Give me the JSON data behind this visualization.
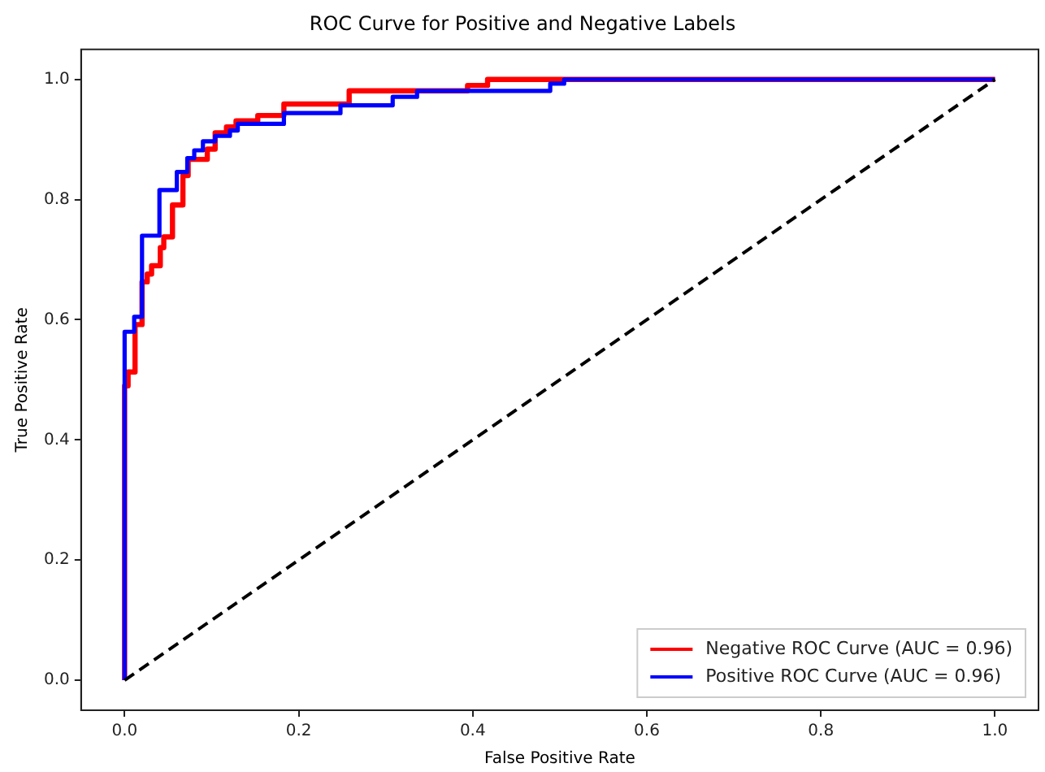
{
  "chart_data": {
    "type": "line",
    "title": "ROC Curve for Positive and Negative Labels",
    "xlabel": "False Positive Rate",
    "ylabel": "True Positive Rate",
    "xlim": [
      -0.05,
      1.05
    ],
    "ylim": [
      -0.05,
      1.05
    ],
    "xticks": [
      {
        "value": 0,
        "label": "0.0"
      },
      0.2,
      0.4,
      0.6,
      0.8,
      {
        "value": 1,
        "label": "1.0"
      }
    ],
    "yticks": [
      {
        "value": 0,
        "label": "0.0"
      },
      0.2,
      0.4,
      0.6,
      0.8,
      {
        "value": 1,
        "label": "1.0"
      }
    ],
    "grid": false,
    "legend": "bottom right",
    "marker": "none",
    "series": [
      {
        "name": "Negative ROC Curve (AUC = 0.96)",
        "color": "#ff0000",
        "line_style": "solid",
        "x": [
          0,
          0,
          0.004,
          0.004,
          0.012,
          0.012,
          0.02,
          0.02,
          0.026,
          0.026,
          0.031,
          0.031,
          0.041,
          0.041,
          0.045,
          0.045,
          0.055,
          0.055,
          0.067,
          0.067,
          0.073,
          0.073,
          0.095,
          0.095,
          0.104,
          0.104,
          0.117,
          0.117,
          0.128,
          0.128,
          0.153,
          0.153,
          0.183,
          0.183,
          0.258,
          0.258,
          0.394,
          0.394,
          0.417,
          0.417,
          1
        ],
        "values": [
          0,
          0.49,
          0.49,
          0.513,
          0.513,
          0.592,
          0.592,
          0.663,
          0.663,
          0.676,
          0.676,
          0.69,
          0.69,
          0.72,
          0.72,
          0.738,
          0.738,
          0.791,
          0.791,
          0.84,
          0.84,
          0.867,
          0.867,
          0.884,
          0.884,
          0.911,
          0.911,
          0.921,
          0.921,
          0.931,
          0.931,
          0.94,
          0.94,
          0.959,
          0.959,
          0.981,
          0.981,
          0.99,
          0.99,
          1,
          1
        ]
      },
      {
        "name": "Positive ROC Curve (AUC = 0.96)",
        "color": "#0000ff",
        "line_style": "solid",
        "x": [
          0,
          0,
          0.011,
          0.011,
          0.02,
          0.02,
          0.04,
          0.04,
          0.06,
          0.06,
          0.072,
          0.072,
          0.08,
          0.08,
          0.09,
          0.09,
          0.104,
          0.104,
          0.121,
          0.121,
          0.13,
          0.13,
          0.183,
          0.183,
          0.248,
          0.248,
          0.308,
          0.308,
          0.336,
          0.336,
          0.489,
          0.489,
          0.505,
          0.505,
          1
        ],
        "values": [
          0,
          0.58,
          0.58,
          0.605,
          0.605,
          0.74,
          0.74,
          0.816,
          0.816,
          0.846,
          0.846,
          0.869,
          0.869,
          0.882,
          0.882,
          0.897,
          0.897,
          0.906,
          0.906,
          0.915,
          0.915,
          0.926,
          0.926,
          0.944,
          0.944,
          0.957,
          0.957,
          0.971,
          0.971,
          0.981,
          0.981,
          0.993,
          0.993,
          1,
          1
        ]
      },
      {
        "color": "#000000",
        "line_style": "dashed",
        "x": [
          0,
          1
        ],
        "values": [
          0,
          1
        ]
      }
    ]
  }
}
